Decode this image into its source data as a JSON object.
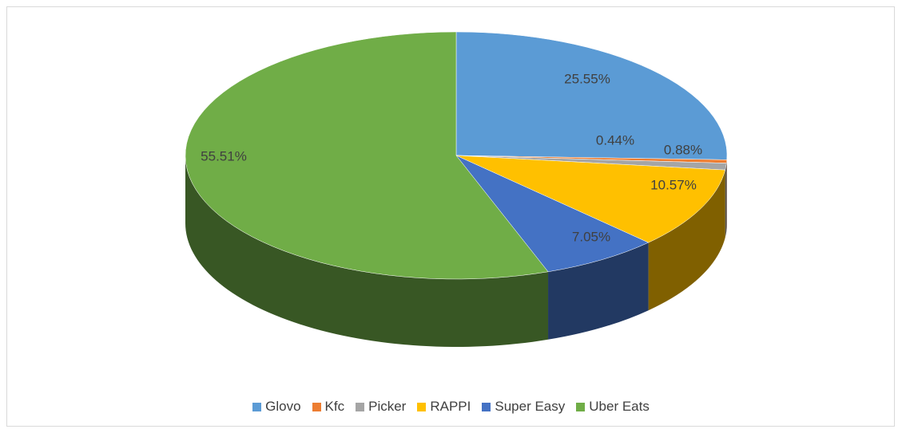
{
  "chart_data": {
    "type": "pie",
    "categories": [
      "Glovo",
      "Kfc",
      "Picker",
      "RAPPI",
      "Super Easy",
      "Uber Eats"
    ],
    "values": [
      25.55,
      0.44,
      0.88,
      10.57,
      7.05,
      55.51
    ],
    "value_labels": [
      "25.55%",
      "0.44%",
      "0.88%",
      "10.57%",
      "7.05%",
      "55.51%"
    ],
    "colors": [
      "#5b9bd5",
      "#ed7d31",
      "#a5a5a5",
      "#ffc000",
      "#4472c4",
      "#70ad47"
    ],
    "legend": "bottom"
  }
}
